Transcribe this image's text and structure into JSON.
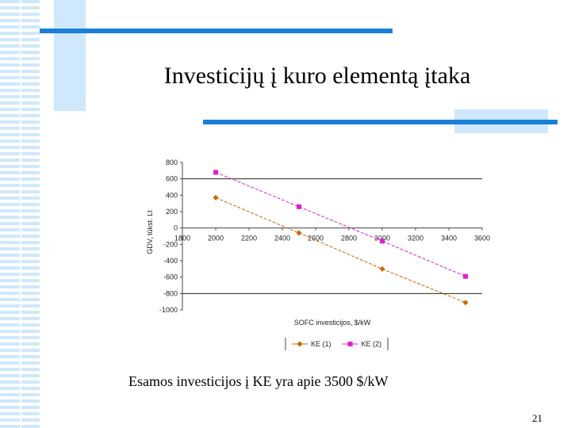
{
  "slide": {
    "title": "Investicijų į kuro elementą įtaka",
    "note": "Esamos investicijos į KE yra apie 3500 $/kW",
    "page_number": "21"
  },
  "chart_data": {
    "type": "line",
    "x": [
      2000,
      2500,
      3000,
      3500
    ],
    "series": [
      {
        "name": "KE (1)",
        "color": "#cc6600",
        "marker": "diamond",
        "values": [
          370,
          -60,
          -500,
          -910
        ]
      },
      {
        "name": "KE (2)",
        "color": "#e020d0",
        "marker": "square",
        "values": [
          680,
          260,
          -160,
          -590
        ]
      }
    ],
    "xlim": [
      1800,
      3600
    ],
    "xticks": [
      1800,
      2000,
      2200,
      2400,
      2600,
      2800,
      3000,
      3200,
      3400,
      3600
    ],
    "ylim": [
      -1000,
      800
    ],
    "yticks": [
      800,
      600,
      400,
      200,
      0,
      -200,
      -400,
      -600,
      -800,
      -1000
    ],
    "gridlines": [
      600,
      -800
    ],
    "x_label": "SOFC investicijos, $/kW",
    "y_label": "GDV, tūkst. Lt",
    "legend": "bottom"
  }
}
